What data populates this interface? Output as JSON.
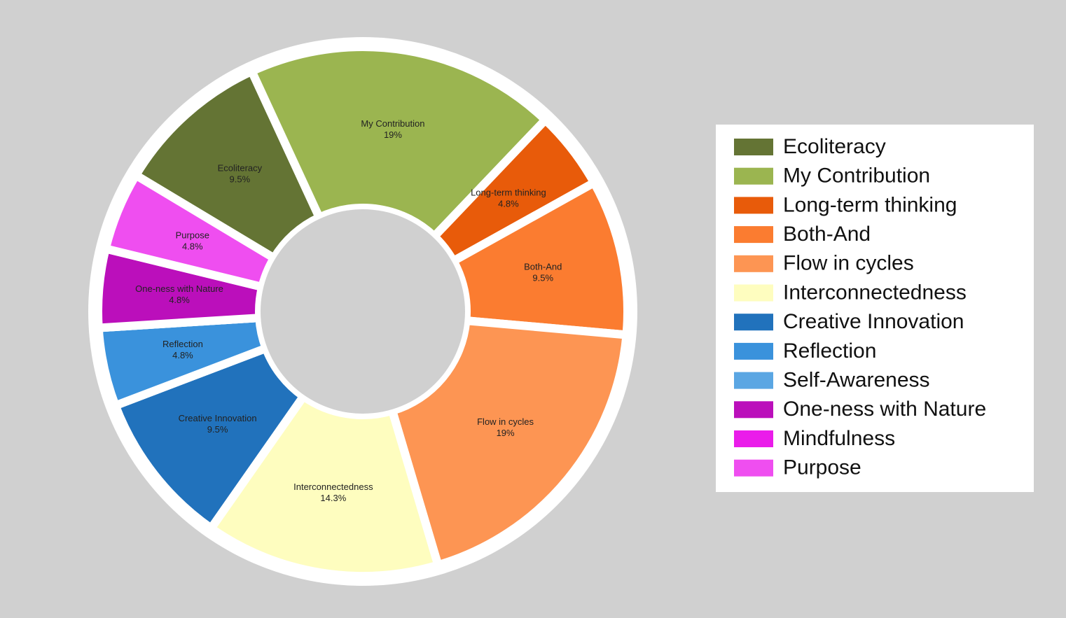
{
  "chart_data": {
    "type": "donut",
    "categories": [
      "Ecoliteracy",
      "My Contribution",
      "Long-term thinking",
      "Both-And",
      "Flow in cycles",
      "Interconnectedness",
      "Creative Innovation",
      "Reflection",
      "Self-Awareness",
      "One-ness with Nature",
      "Mindfulness",
      "Purpose"
    ],
    "values": [
      9.5,
      19,
      4.8,
      9.5,
      19,
      14.3,
      9.5,
      4.8,
      0,
      4.8,
      0,
      4.8
    ],
    "value_labels": [
      "9.5%",
      "19%",
      "4.8%",
      "9.5%",
      "19%",
      "14.3%",
      "9.5%",
      "4.8%",
      null,
      "4.8%",
      null,
      "4.8%"
    ],
    "colors": [
      "#647434",
      "#9bb550",
      "#e85b0a",
      "#fb7c30",
      "#fd9553",
      "#fefdbf",
      "#2172bc",
      "#3a92dc",
      "#5aa6e3",
      "#bb0fbb",
      "#ea1cea",
      "#ef4ef0"
    ],
    "legend": "right"
  }
}
